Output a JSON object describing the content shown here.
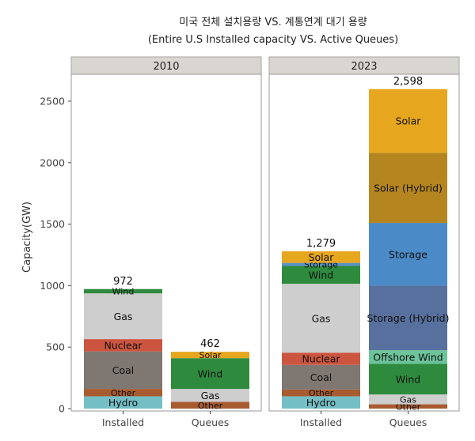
{
  "chart_data": {
    "type": "bar",
    "stacked": true,
    "title": "미국 전체 설치용량 VS. 계통연계 대기 용량",
    "subtitle": "(Entire U.S Installed capacity VS. Active Queues)",
    "ylabel": "Capacity(GW)",
    "xlabel": "",
    "ylim": [
      0,
      2600
    ],
    "yticks": [
      0,
      500,
      1000,
      1500,
      2000,
      2500
    ],
    "grid": false,
    "legend": "none",
    "categories": [
      "Installed",
      "Queues"
    ],
    "panels": [
      {
        "label": "2010",
        "bars": [
          {
            "category": "Installed",
            "total_label": "972",
            "segments": [
              {
                "name": "Hydro",
                "value": 100,
                "color": "#74bec6"
              },
              {
                "name": "Other",
                "value": 60,
                "color": "#a85b2f"
              },
              {
                "name": "Coal",
                "value": 305,
                "color": "#7e7772"
              },
              {
                "name": "Nuclear",
                "value": 100,
                "color": "#cc5540"
              },
              {
                "name": "Gas",
                "value": 372,
                "color": "#cecece"
              },
              {
                "name": "Wind",
                "value": 35,
                "color": "#2e8b3e"
              }
            ]
          },
          {
            "category": "Queues",
            "total_label": "462",
            "segments": [
              {
                "name": "Other",
                "value": 55,
                "color": "#a85b2f"
              },
              {
                "name": "Gas",
                "value": 105,
                "color": "#cecece"
              },
              {
                "name": "Wind",
                "value": 250,
                "color": "#2e8b3e"
              },
              {
                "name": "Solar",
                "value": 52,
                "color": "#e6a61e"
              }
            ]
          }
        ]
      },
      {
        "label": "2023",
        "bars": [
          {
            "category": "Installed",
            "total_label": "1,279",
            "segments": [
              {
                "name": "Hydro",
                "value": 100,
                "color": "#74bec6"
              },
              {
                "name": "Other",
                "value": 55,
                "color": "#a85b2f"
              },
              {
                "name": "Coal",
                "value": 200,
                "color": "#7e7772"
              },
              {
                "name": "Nuclear",
                "value": 100,
                "color": "#cc5540"
              },
              {
                "name": "Gas",
                "value": 560,
                "color": "#cecece"
              },
              {
                "name": "Wind",
                "value": 145,
                "color": "#2e8b3e"
              },
              {
                "name": "Storage",
                "value": 25,
                "color": "#5b92c4"
              },
              {
                "name": "Solar",
                "value": 94,
                "color": "#e6a61e"
              }
            ]
          },
          {
            "category": "Queues",
            "total_label": "2,598",
            "segments": [
              {
                "name": "Other",
                "value": 35,
                "color": "#a85b2f"
              },
              {
                "name": "Gas",
                "value": 80,
                "color": "#cecece"
              },
              {
                "name": "Wind",
                "value": 250,
                "color": "#2e8b3e"
              },
              {
                "name": "Offshore Wind",
                "value": 110,
                "color": "#6cc49a"
              },
              {
                "name": "Storage (Hybrid)",
                "value": 525,
                "color": "#57709d"
              },
              {
                "name": "Storage",
                "value": 510,
                "color": "#4a8ac6"
              },
              {
                "name": "Solar (Hybrid)",
                "value": 570,
                "color": "#b5861f"
              },
              {
                "name": "Solar",
                "value": 518,
                "color": "#e6a61e"
              }
            ]
          }
        ]
      }
    ]
  }
}
